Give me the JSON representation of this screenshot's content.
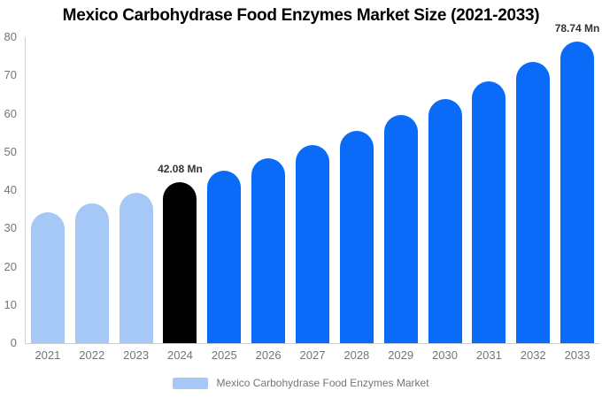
{
  "title": "Mexico Carbohydrase Food Enzymes Market Size (2021-2033)",
  "legend": {
    "label": "Mexico Carbohydrase Food Enzymes Market",
    "swatch_color": "#a5c8f7"
  },
  "colors": {
    "historical": "#a5c8f7",
    "base_year": "#000000",
    "forecast": "#0a6bf8",
    "axis_line": "#cfcfcf",
    "tick_text": "#757575",
    "annotation_text": "#333333"
  },
  "chart_data": {
    "type": "bar",
    "title": "Mexico Carbohydrase Food Enzymes Market Size (2021-2033)",
    "xlabel": "",
    "ylabel": "",
    "ylim": [
      0,
      80
    ],
    "y_ticks": [
      0,
      10,
      20,
      30,
      40,
      50,
      60,
      70,
      80
    ],
    "grid": false,
    "legend_position": "bottom",
    "categories": [
      "2021",
      "2022",
      "2023",
      "2024",
      "2025",
      "2026",
      "2027",
      "2028",
      "2029",
      "2030",
      "2031",
      "2032",
      "2033"
    ],
    "values": [
      34.15,
      36.61,
      39.25,
      42.08,
      45.11,
      48.36,
      51.85,
      55.59,
      59.6,
      63.9,
      68.5,
      73.44,
      78.74
    ],
    "bar_roles": [
      "historical",
      "historical",
      "historical",
      "base_year",
      "forecast",
      "forecast",
      "forecast",
      "forecast",
      "forecast",
      "forecast",
      "forecast",
      "forecast",
      "forecast"
    ],
    "annotations": [
      {
        "category": "2024",
        "label": "42.08 Mn"
      },
      {
        "category": "2033",
        "label": "78.74 Mn"
      }
    ],
    "series": [
      {
        "name": "Mexico Carbohydrase Food Enzymes Market",
        "values": [
          34.15,
          36.61,
          39.25,
          42.08,
          45.11,
          48.36,
          51.85,
          55.59,
          59.6,
          63.9,
          68.5,
          73.44,
          78.74
        ]
      }
    ]
  }
}
